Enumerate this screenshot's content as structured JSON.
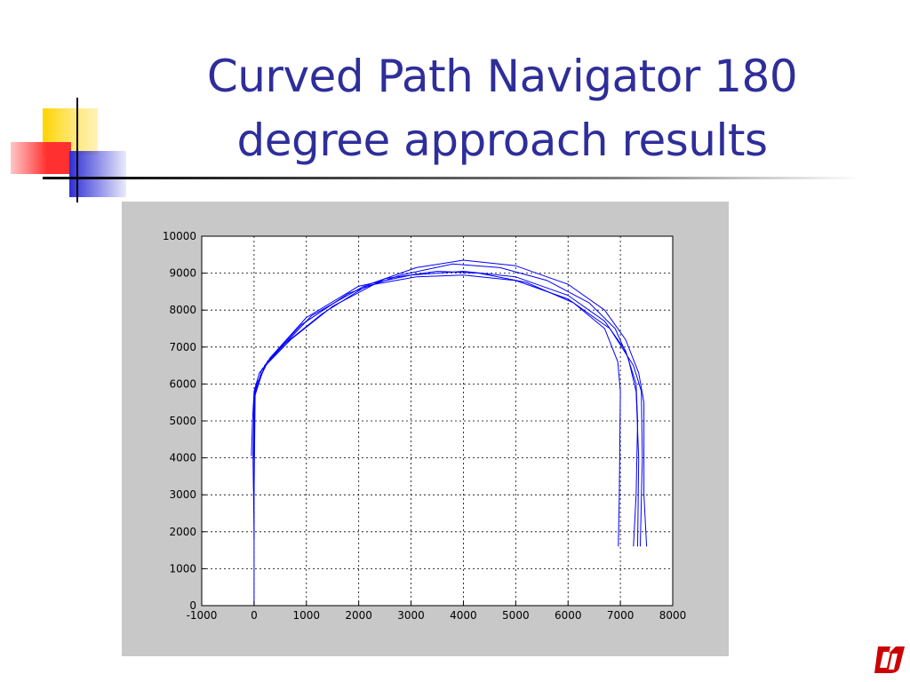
{
  "slide": {
    "title_line1": "Curved Path Navigator 180",
    "title_line2": "degree approach results",
    "title_color": "#2e2e9a"
  },
  "decoration": {
    "colors": [
      "#ffd400",
      "#ff3b3b",
      "#2f2fd6",
      "#000000"
    ]
  },
  "logo": {
    "icon": "university-logo-icon",
    "color": "#cc0000"
  },
  "chart_data": {
    "type": "line",
    "title": "",
    "xlabel": "",
    "ylabel": "",
    "xlim": [
      -1000,
      8000
    ],
    "ylim": [
      0,
      10000
    ],
    "xticks": [
      -1000,
      0,
      1000,
      2000,
      3000,
      4000,
      5000,
      6000,
      7000,
      8000
    ],
    "yticks": [
      0,
      1000,
      2000,
      3000,
      4000,
      5000,
      6000,
      7000,
      8000,
      9000,
      10000
    ],
    "x_tick_labels": [
      "-1000",
      "0",
      "1000",
      "2000",
      "3000",
      "4000",
      "5000",
      "6000",
      "7000",
      "8000"
    ],
    "y_tick_labels": [
      "0",
      "1000",
      "2000",
      "3000",
      "4000",
      "5000",
      "6000",
      "7000",
      "8000",
      "9000",
      "10000"
    ],
    "grid": true,
    "grid_style": "dotted",
    "line_color": "#0000ff",
    "plot_background": "#ffffff",
    "frame_background": "#c8c8c8",
    "series": [
      {
        "values": [
          [
            0,
            0
          ],
          [
            0,
            2000
          ],
          [
            -20,
            4000
          ],
          [
            0,
            5600
          ],
          [
            50,
            6000
          ],
          [
            300,
            6700
          ],
          [
            1000,
            7800
          ],
          [
            2000,
            8650
          ],
          [
            3000,
            8950
          ],
          [
            4000,
            9050
          ],
          [
            5000,
            8900
          ],
          [
            6000,
            8400
          ],
          [
            6700,
            7700
          ],
          [
            7100,
            6900
          ],
          [
            7300,
            6000
          ],
          [
            7330,
            5000
          ],
          [
            7300,
            3000
          ],
          [
            7250,
            1600
          ]
        ]
      },
      {
        "values": [
          [
            -50,
            4050
          ],
          [
            -30,
            5000
          ],
          [
            0,
            5800
          ],
          [
            100,
            6300
          ],
          [
            400,
            6800
          ],
          [
            1100,
            7850
          ],
          [
            2100,
            8650
          ],
          [
            3100,
            8900
          ],
          [
            4000,
            8950
          ],
          [
            5000,
            8800
          ],
          [
            6000,
            8300
          ],
          [
            6800,
            7500
          ],
          [
            7250,
            6500
          ],
          [
            7400,
            5800
          ],
          [
            7420,
            4000
          ],
          [
            7380,
            1600
          ]
        ]
      },
      {
        "values": [
          [
            0,
            3000
          ],
          [
            20,
            5700
          ],
          [
            200,
            6500
          ],
          [
            600,
            7100
          ],
          [
            1300,
            7900
          ],
          [
            2200,
            8700
          ],
          [
            3100,
            9150
          ],
          [
            4000,
            9350
          ],
          [
            5000,
            9200
          ],
          [
            6000,
            8700
          ],
          [
            6700,
            8000
          ],
          [
            7100,
            7200
          ],
          [
            7350,
            6300
          ],
          [
            7450,
            5500
          ],
          [
            7450,
            3000
          ],
          [
            7500,
            1600
          ]
        ]
      },
      {
        "values": [
          [
            0,
            1800
          ],
          [
            0,
            5600
          ],
          [
            150,
            6400
          ],
          [
            700,
            7200
          ],
          [
            1500,
            8100
          ],
          [
            2500,
            8850
          ],
          [
            3500,
            9050
          ],
          [
            4300,
            9000
          ],
          [
            5200,
            8750
          ],
          [
            6100,
            8200
          ],
          [
            6700,
            7500
          ],
          [
            6950,
            6600
          ],
          [
            7000,
            5800
          ],
          [
            6980,
            3000
          ],
          [
            6960,
            1600
          ]
        ]
      },
      {
        "values": [
          [
            -10,
            4000
          ],
          [
            10,
            5800
          ],
          [
            250,
            6600
          ],
          [
            900,
            7600
          ],
          [
            1800,
            8450
          ],
          [
            2800,
            8950
          ],
          [
            3800,
            9250
          ],
          [
            4700,
            9150
          ],
          [
            5600,
            8800
          ],
          [
            6400,
            8200
          ],
          [
            6900,
            7500
          ],
          [
            7150,
            6700
          ],
          [
            7300,
            5800
          ],
          [
            7350,
            4000
          ],
          [
            7330,
            1600
          ]
        ]
      }
    ]
  }
}
